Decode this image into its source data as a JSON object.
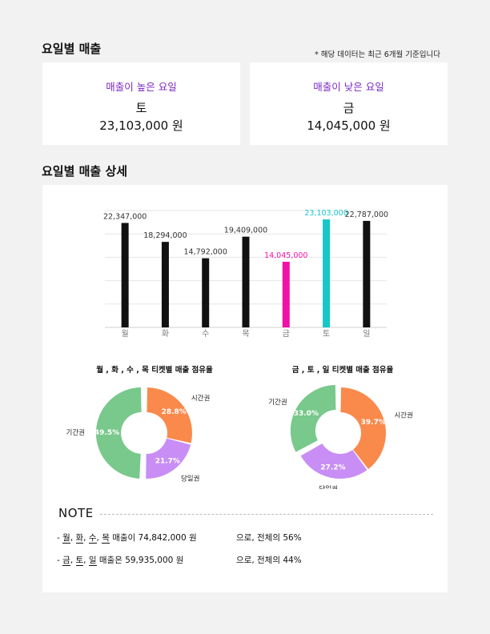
{
  "section1_title": "요일별 매출",
  "data_note": "* 해당 데이터는 최근 6개월 기준입니다",
  "high_card": {
    "label": "매출이 높은 요일",
    "day": "토",
    "amount": "23,103,000 원"
  },
  "low_card": {
    "label": "매출이 낮은 요일",
    "day": "금",
    "amount": "14,045,000 원"
  },
  "section2_title": "요일별 매출 상세",
  "colors": {
    "normal": "#111111",
    "low": "#f011a8",
    "high": "#17c7c7",
    "accent": "#7b28c4",
    "seg_time": "#f98a4b",
    "seg_day": "#c98ef5",
    "seg_period": "#79c88c"
  },
  "chart_data": {
    "type": "bar",
    "categories": [
      "월",
      "화",
      "수",
      "목",
      "금",
      "토",
      "일"
    ],
    "values": [
      22347000,
      18294000,
      14792000,
      19409000,
      14045000,
      23103000,
      22787000
    ],
    "value_labels": [
      "22,347,000",
      "18,294,000",
      "14,792,000",
      "19,409,000",
      "14,045,000",
      "23,103,000",
      "22,787,000"
    ],
    "highlight": {
      "low_index": 4,
      "high_index": 5
    },
    "ylim": [
      0,
      25000000
    ],
    "grid": true
  },
  "pies": [
    {
      "title": "월 , 화 , 수 , 목 티켓별 매출 점유율",
      "type": "pie",
      "segments": [
        {
          "name": "시간권",
          "value": 28.8,
          "label": "28.8%",
          "color": "#f98a4b"
        },
        {
          "name": "당일권",
          "value": 21.7,
          "label": "21.7%",
          "color": "#c98ef5"
        },
        {
          "name": "기간권",
          "value": 49.5,
          "label": "49.5%",
          "color": "#79c88c"
        }
      ]
    },
    {
      "title": "금 , 토 , 일 티켓별 매출 점유율",
      "type": "pie",
      "segments": [
        {
          "name": "시간권",
          "value": 39.7,
          "label": "39.7%",
          "color": "#f98a4b"
        },
        {
          "name": "당일권",
          "value": 27.2,
          "label": "27.2%",
          "color": "#c98ef5"
        },
        {
          "name": "기간권",
          "value": 33.0,
          "label": "33.0%",
          "color": "#79c88c"
        }
      ]
    }
  ],
  "note": {
    "heading": "NOTE",
    "row1": {
      "prefix": "- ",
      "d1": "월",
      "d2": "화",
      "d3": "수",
      "d4": "목",
      "mid": " 매출이 ",
      "amount": "74,842,000 원",
      "tail": "으로,  전체의  56%"
    },
    "row2": {
      "prefix": "- ",
      "d1": "금",
      "d2": "토",
      "d3": "일",
      "mid": " 매출은  ",
      "amount": "59,935,000 원",
      "tail": "으로,  전체의  44%"
    }
  }
}
